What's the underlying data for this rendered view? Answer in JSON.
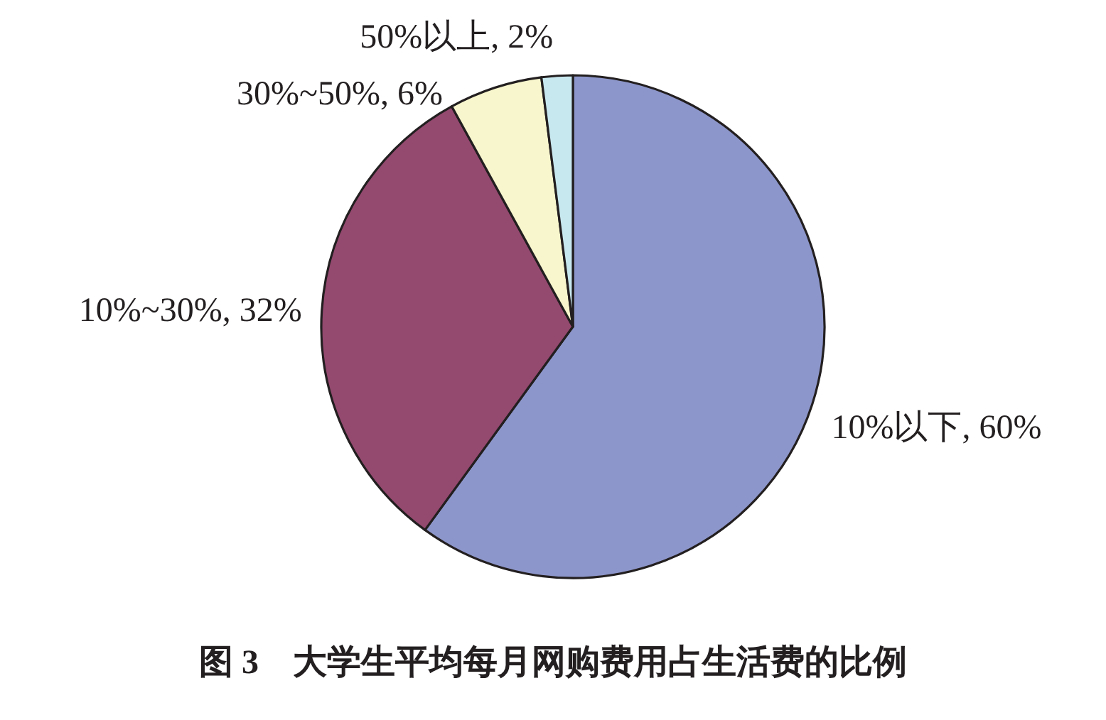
{
  "chart_data": {
    "type": "pie",
    "title": "图 3　大学生平均每月网购费用占生活费的比例",
    "categories": [
      "10%以下",
      "10%~30%",
      "30%~50%",
      "50%以上"
    ],
    "values": [
      60,
      32,
      6,
      2
    ],
    "value_labels": [
      "60%",
      "32%",
      "6%",
      "2%"
    ],
    "colors": [
      "#8d96ca",
      "#94496f",
      "#f7f6cc",
      "#c8e8ef"
    ]
  }
}
